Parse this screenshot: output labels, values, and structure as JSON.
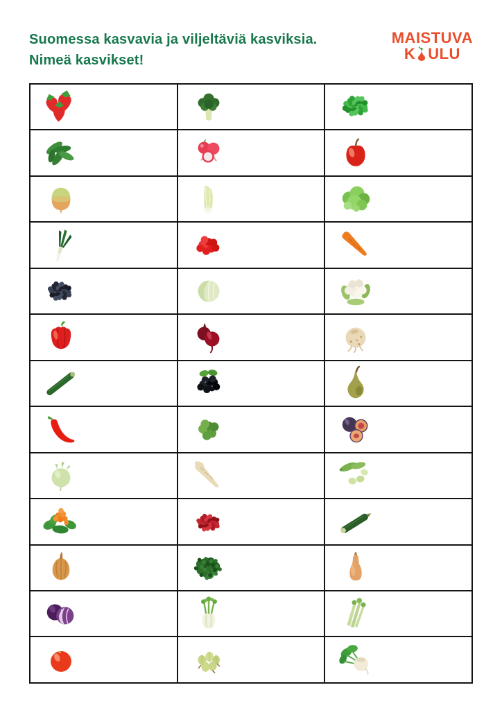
{
  "header": {
    "title_line1": "Suomessa kasvavia ja viljeltäviä kasviksia.",
    "title_line2": "Nimeä kasvikset!",
    "title_color": "#17784b"
  },
  "logo": {
    "line1": "MAISTUVA",
    "line2_prefix": "K",
    "line2_suffix": "ULU",
    "color": "#e84f2d",
    "pear_icon": "pear-with-leaf-icon"
  },
  "table": {
    "border_color": "#141414",
    "columns": 3,
    "rows": [
      {
        "cells": [
          "strawberries",
          "broccoli",
          "green-peas"
        ]
      },
      {
        "cells": [
          "sugar-snap-peas",
          "radishes",
          "apple"
        ]
      },
      {
        "cells": [
          "swede",
          "napa-cabbage",
          "lettuce"
        ]
      },
      {
        "cells": [
          "leek",
          "raspberries",
          "carrot"
        ]
      },
      {
        "cells": [
          "blueberries",
          "cabbage",
          "cauliflower"
        ]
      },
      {
        "cells": [
          "red-bell-pepper",
          "beetroot",
          "celeriac"
        ]
      },
      {
        "cells": [
          "cucumber",
          "blackcurrants",
          "pear"
        ]
      },
      {
        "cells": [
          "chili-pepper",
          "brussels-sprouts",
          "plums"
        ]
      },
      {
        "cells": [
          "kohlrabi",
          "parsnip",
          "broad-beans"
        ]
      },
      {
        "cells": [
          "cloudberry",
          "lingonberries",
          "zucchini"
        ]
      },
      {
        "cells": [
          "onion",
          "kale",
          "butternut-squash"
        ]
      },
      {
        "cells": [
          "red-cabbage",
          "fennel",
          "celery"
        ]
      },
      {
        "cells": [
          "tomato",
          "gooseberries",
          "turnip"
        ]
      }
    ]
  }
}
